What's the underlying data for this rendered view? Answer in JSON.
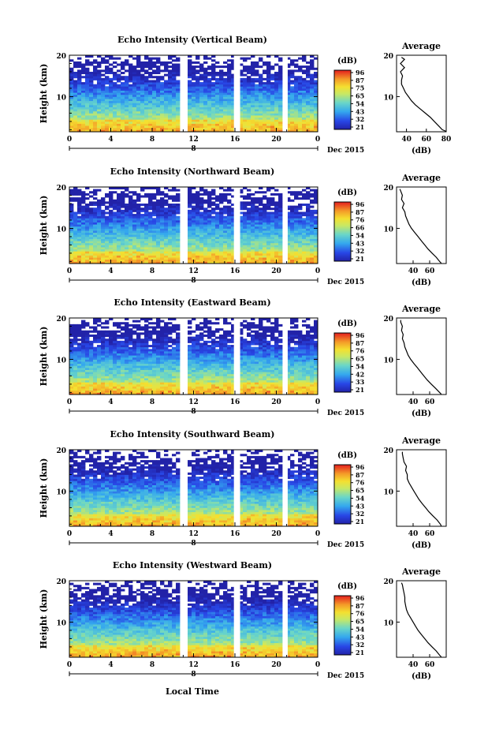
{
  "figure": {
    "xlabel": "Local Time",
    "date_label": "Dec 2015",
    "ylabel": "Height (km)",
    "colorbar_unit": "(dB)",
    "avg_title": "Average",
    "avg_xlabel": "(dB)",
    "x_ticks": [
      "0",
      "4",
      "8",
      "12",
      "16",
      "20",
      "0"
    ],
    "day_marker": "8",
    "y_ticks": [
      "10",
      "20"
    ]
  },
  "chart_data": [
    {
      "type": "heatmap",
      "title": "Echo Intensity (Vertical Beam)",
      "xlim": [
        0,
        24
      ],
      "ylim": [
        1.5,
        20
      ],
      "colorbar_ticks": [
        96,
        87,
        75,
        65,
        54,
        43,
        32,
        21
      ],
      "data_gaps_hours": [
        [
          10.8,
          11.3
        ],
        [
          15.9,
          16.5
        ],
        [
          20.7,
          21.1
        ]
      ],
      "average_profile": {
        "xlim": [
          30,
          80
        ],
        "x_ticks": [
          40,
          60,
          80
        ],
        "height_km": [
          1.6,
          2,
          3,
          4,
          5,
          6,
          7,
          8,
          9,
          10,
          11,
          12,
          13,
          14,
          15,
          16,
          17,
          18,
          19,
          19.5
        ],
        "power_db": [
          80,
          76,
          72,
          68,
          64,
          59,
          54,
          49,
          45,
          42,
          39,
          37,
          35,
          35,
          36,
          34,
          38,
          34,
          38,
          35
        ]
      }
    },
    {
      "type": "heatmap",
      "title": "Echo Intensity (Northward Beam)",
      "xlim": [
        0,
        24
      ],
      "ylim": [
        1.5,
        20
      ],
      "colorbar_ticks": [
        96,
        87,
        76,
        66,
        54,
        43,
        32,
        21
      ],
      "data_gaps_hours": [
        [
          10.8,
          11.3
        ],
        [
          15.9,
          16.5
        ],
        [
          20.7,
          21.1
        ]
      ],
      "average_profile": {
        "xlim": [
          20,
          80
        ],
        "x_ticks": [
          40,
          60
        ],
        "height_km": [
          1.6,
          2,
          3,
          4,
          5,
          6,
          7,
          8,
          9,
          10,
          11,
          12,
          13,
          14,
          15,
          16,
          17,
          18,
          19,
          19.5
        ],
        "power_db": [
          74,
          72,
          68,
          63,
          58,
          54,
          50,
          46,
          42,
          38,
          35,
          33,
          31,
          30,
          27,
          29,
          26,
          27,
          25,
          24
        ]
      }
    },
    {
      "type": "heatmap",
      "title": "Echo Intensity (Eastward Beam)",
      "xlim": [
        0,
        24
      ],
      "ylim": [
        1.5,
        20
      ],
      "colorbar_ticks": [
        96,
        87,
        76,
        65,
        54,
        42,
        33,
        21
      ],
      "data_gaps_hours": [
        [
          10.8,
          11.3
        ],
        [
          15.9,
          16.5
        ],
        [
          20.7,
          21.1
        ]
      ],
      "average_profile": {
        "xlim": [
          20,
          80
        ],
        "x_ticks": [
          40,
          60
        ],
        "height_km": [
          1.6,
          2,
          3,
          4,
          5,
          6,
          7,
          8,
          9,
          10,
          11,
          12,
          13,
          14,
          15,
          16,
          17,
          18,
          19,
          19.5
        ],
        "power_db": [
          74,
          72,
          67,
          62,
          57,
          53,
          49,
          45,
          41,
          37,
          34,
          32,
          30,
          29,
          27,
          28,
          26,
          27,
          25,
          25
        ]
      }
    },
    {
      "type": "heatmap",
      "title": "Echo Intensity (Southward Beam)",
      "xlim": [
        0,
        24
      ],
      "ylim": [
        1.5,
        20
      ],
      "colorbar_ticks": [
        96,
        87,
        76,
        65,
        54,
        43,
        32,
        21
      ],
      "data_gaps_hours": [
        [
          10.8,
          11.3
        ],
        [
          15.9,
          16.5
        ],
        [
          20.7,
          21.1
        ]
      ],
      "average_profile": {
        "xlim": [
          20,
          80
        ],
        "x_ticks": [
          40,
          60
        ],
        "height_km": [
          1.6,
          2,
          3,
          4,
          5,
          6,
          7,
          8,
          9,
          10,
          11,
          12,
          13,
          14,
          15,
          16,
          17,
          18,
          19,
          19.5
        ],
        "power_db": [
          74,
          73,
          69,
          64,
          59,
          55,
          51,
          47,
          44,
          41,
          38,
          35,
          33,
          33,
          31,
          32,
          29,
          28,
          27,
          27
        ]
      }
    },
    {
      "type": "heatmap",
      "title": "Echo Intensity (Westward Beam)",
      "xlim": [
        0,
        24
      ],
      "ylim": [
        1.5,
        20
      ],
      "colorbar_ticks": [
        96,
        87,
        76,
        65,
        54,
        43,
        32,
        21
      ],
      "data_gaps_hours": [
        [
          10.8,
          11.3
        ],
        [
          15.9,
          16.5
        ],
        [
          20.7,
          21.1
        ]
      ],
      "average_profile": {
        "xlim": [
          20,
          80
        ],
        "x_ticks": [
          40,
          60
        ],
        "height_km": [
          1.6,
          2,
          3,
          4,
          5,
          6,
          7,
          8,
          9,
          10,
          11,
          12,
          13,
          14,
          15,
          16,
          17,
          18,
          19,
          19.5
        ],
        "power_db": [
          74,
          72,
          68,
          63,
          58,
          54,
          50,
          46,
          43,
          40,
          37,
          34,
          32,
          31,
          30,
          30,
          29,
          28,
          27,
          26
        ]
      }
    }
  ]
}
